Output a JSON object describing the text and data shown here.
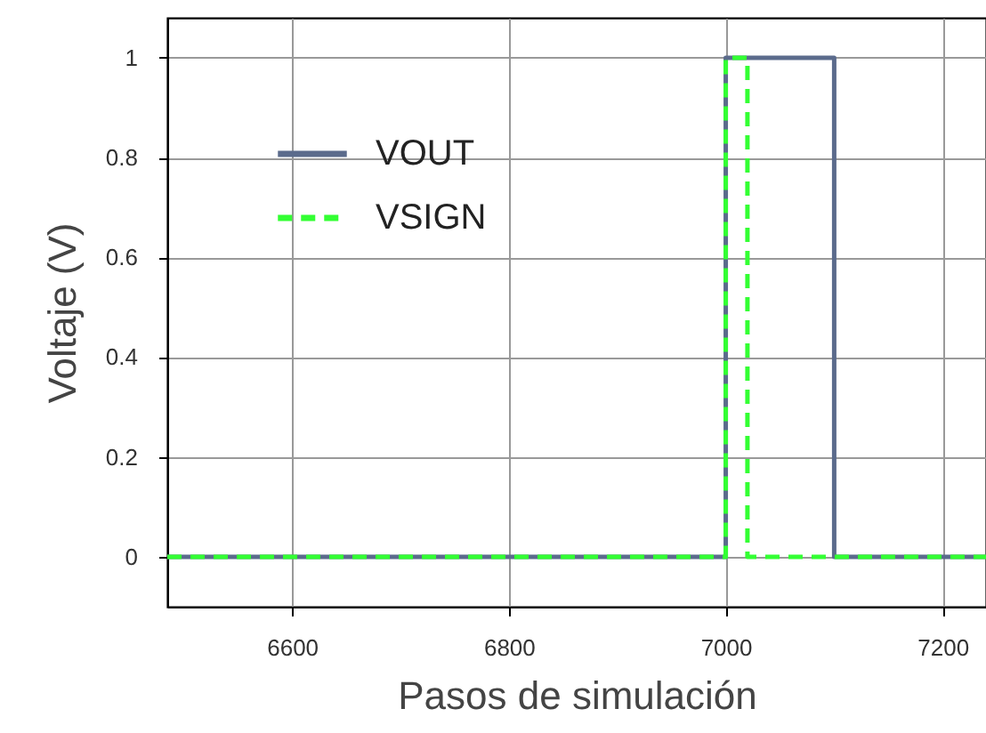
{
  "chart_data": {
    "type": "step",
    "xlabel": "Pasos de simulación",
    "ylabel": "Voltaje (V)",
    "xlim": [
      6485,
      7240
    ],
    "xticks": [
      6600,
      6800,
      7000,
      7200
    ],
    "ylim": [
      -0.1,
      1.08
    ],
    "yticks": [
      0,
      0.2,
      0.4,
      0.6,
      0.8,
      1
    ],
    "grid": true,
    "legend": "top left",
    "marker": "none",
    "series": [
      {
        "name": "VOUT",
        "color": "#5b6b8c",
        "line_style": "solid",
        "x": [
          6485,
          7000,
          7100,
          7240
        ],
        "values": [
          0,
          1,
          0,
          0
        ]
      },
      {
        "name": "VSIGN",
        "color": "#33ff33",
        "line_style": "dashed",
        "x": [
          6485,
          7000,
          7020,
          7240
        ],
        "values": [
          0,
          1,
          0,
          0
        ]
      }
    ]
  }
}
